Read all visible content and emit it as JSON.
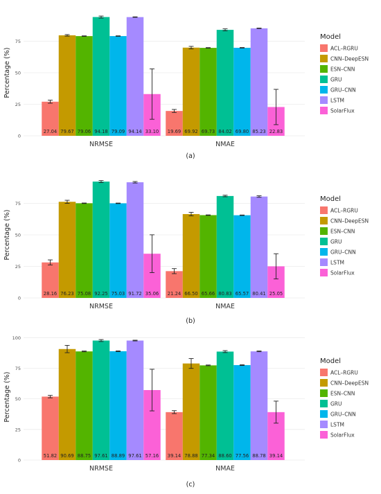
{
  "figure": {
    "panel_labels": [
      "(a)",
      "(b)",
      "(c)"
    ]
  },
  "chart_data": [
    {
      "type": "bar",
      "panel": "(a)",
      "categories": [
        "NRMSE",
        "NMAE"
      ],
      "ylabel": "Percentage (%)",
      "ylim": [
        0,
        100
      ],
      "yticks": [
        0,
        25,
        50,
        75
      ],
      "legend": {
        "title": "Model",
        "placement": "right"
      },
      "series": [
        {
          "name": "ACL–RGRU",
          "color": "#F8766D",
          "values": [
            27.04,
            19.69
          ],
          "err": [
            1.2,
            1.2
          ]
        },
        {
          "name": "CNN–DeepESN",
          "color": "#C49A00",
          "values": [
            79.67,
            69.92
          ],
          "err": [
            0.6,
            1.0
          ]
        },
        {
          "name": "ESN–CNN",
          "color": "#53B400",
          "values": [
            79.06,
            69.73
          ],
          "err": [
            0.2,
            0.2
          ]
        },
        {
          "name": "GRU",
          "color": "#00C094",
          "values": [
            94.18,
            84.02
          ],
          "err": [
            0.8,
            0.8
          ]
        },
        {
          "name": "GRU–CNN",
          "color": "#00B6EB",
          "values": [
            79.09,
            69.8
          ],
          "err": [
            0.2,
            0.2
          ]
        },
        {
          "name": "LSTM",
          "color": "#A58AFF",
          "values": [
            94.14,
            85.23
          ],
          "err": [
            0.2,
            0.2
          ]
        },
        {
          "name": "SolarFlux",
          "color": "#FB61D7",
          "values": [
            33.1,
            22.83
          ],
          "err": [
            20,
            14
          ]
        }
      ],
      "value_labels": [
        [
          "27.04",
          "79.67",
          "79.06",
          "94.18",
          "79.09",
          "94.14",
          "33.10"
        ],
        [
          "19.69",
          "69.92",
          "69.73",
          "84.02",
          "69.80",
          "85.23",
          "22.83"
        ]
      ]
    },
    {
      "type": "bar",
      "panel": "(b)",
      "categories": [
        "NRMSE",
        "NMAE"
      ],
      "ylabel": "Percentage (%)",
      "ylim": [
        0,
        100
      ],
      "yticks": [
        0,
        25,
        50,
        75
      ],
      "legend": {
        "title": "Model",
        "placement": "right"
      },
      "series": [
        {
          "name": "ACL–RGRU",
          "color": "#F8766D",
          "values": [
            28.16,
            21.24
          ],
          "err": [
            2.0,
            2.0
          ]
        },
        {
          "name": "CNN–DeepESN",
          "color": "#C49A00",
          "values": [
            76.23,
            66.5
          ],
          "err": [
            1.2,
            1.4
          ]
        },
        {
          "name": "ESN–CNN",
          "color": "#53B400",
          "values": [
            75.08,
            65.66
          ],
          "err": [
            0.2,
            0.2
          ]
        },
        {
          "name": "GRU",
          "color": "#00C094",
          "values": [
            92.25,
            80.83
          ],
          "err": [
            0.8,
            0.6
          ]
        },
        {
          "name": "GRU–CNN",
          "color": "#00B6EB",
          "values": [
            75.03,
            65.57
          ],
          "err": [
            0.2,
            0.2
          ]
        },
        {
          "name": "LSTM",
          "color": "#A58AFF",
          "values": [
            91.72,
            80.41
          ],
          "err": [
            0.6,
            0.6
          ]
        },
        {
          "name": "SolarFlux",
          "color": "#FB61D7",
          "values": [
            35.06,
            25.05
          ],
          "err": [
            15,
            10
          ]
        }
      ],
      "value_labels": [
        [
          "28.16",
          "76.23",
          "75.08",
          "92.25",
          "75.03",
          "91.72",
          "35.06"
        ],
        [
          "21.24",
          "66.50",
          "65.66",
          "80.83",
          "65.57",
          "80.41",
          "25.05"
        ]
      ]
    },
    {
      "type": "bar",
      "panel": "(c)",
      "categories": [
        "NRMSE",
        "NMAE"
      ],
      "ylabel": "Percentage (%)",
      "ylim": [
        0,
        103
      ],
      "yticks": [
        0,
        25,
        50,
        75,
        100
      ],
      "legend": {
        "title": "Model",
        "placement": "right"
      },
      "series": [
        {
          "name": "ACL–RGRU",
          "color": "#F8766D",
          "values": [
            51.82,
            39.14
          ],
          "err": [
            1.0,
            1.2
          ]
        },
        {
          "name": "CNN–DeepESN",
          "color": "#C49A00",
          "values": [
            90.69,
            78.88
          ],
          "err": [
            3.0,
            4.0
          ]
        },
        {
          "name": "ESN–CNN",
          "color": "#53B400",
          "values": [
            88.75,
            77.34
          ],
          "err": [
            0.3,
            0.3
          ]
        },
        {
          "name": "GRU",
          "color": "#00C094",
          "values": [
            97.61,
            88.6
          ],
          "err": [
            0.8,
            0.8
          ]
        },
        {
          "name": "GRU–CNN",
          "color": "#00B6EB",
          "values": [
            88.89,
            77.56
          ],
          "err": [
            0.3,
            0.3
          ]
        },
        {
          "name": "LSTM",
          "color": "#A58AFF",
          "values": [
            97.61,
            88.78
          ],
          "err": [
            0.3,
            0.3
          ]
        },
        {
          "name": "SolarFlux",
          "color": "#FB61D7",
          "values": [
            57.16,
            39.14
          ],
          "err": [
            17,
            9
          ]
        }
      ],
      "value_labels": [
        [
          "51.82",
          "90.69",
          "88.75",
          "97.61",
          "88.89",
          "97.61",
          "57.16"
        ],
        [
          "39.14",
          "78.88",
          "77.34",
          "88.60",
          "77.56",
          "88.78",
          "39.14"
        ]
      ]
    }
  ]
}
